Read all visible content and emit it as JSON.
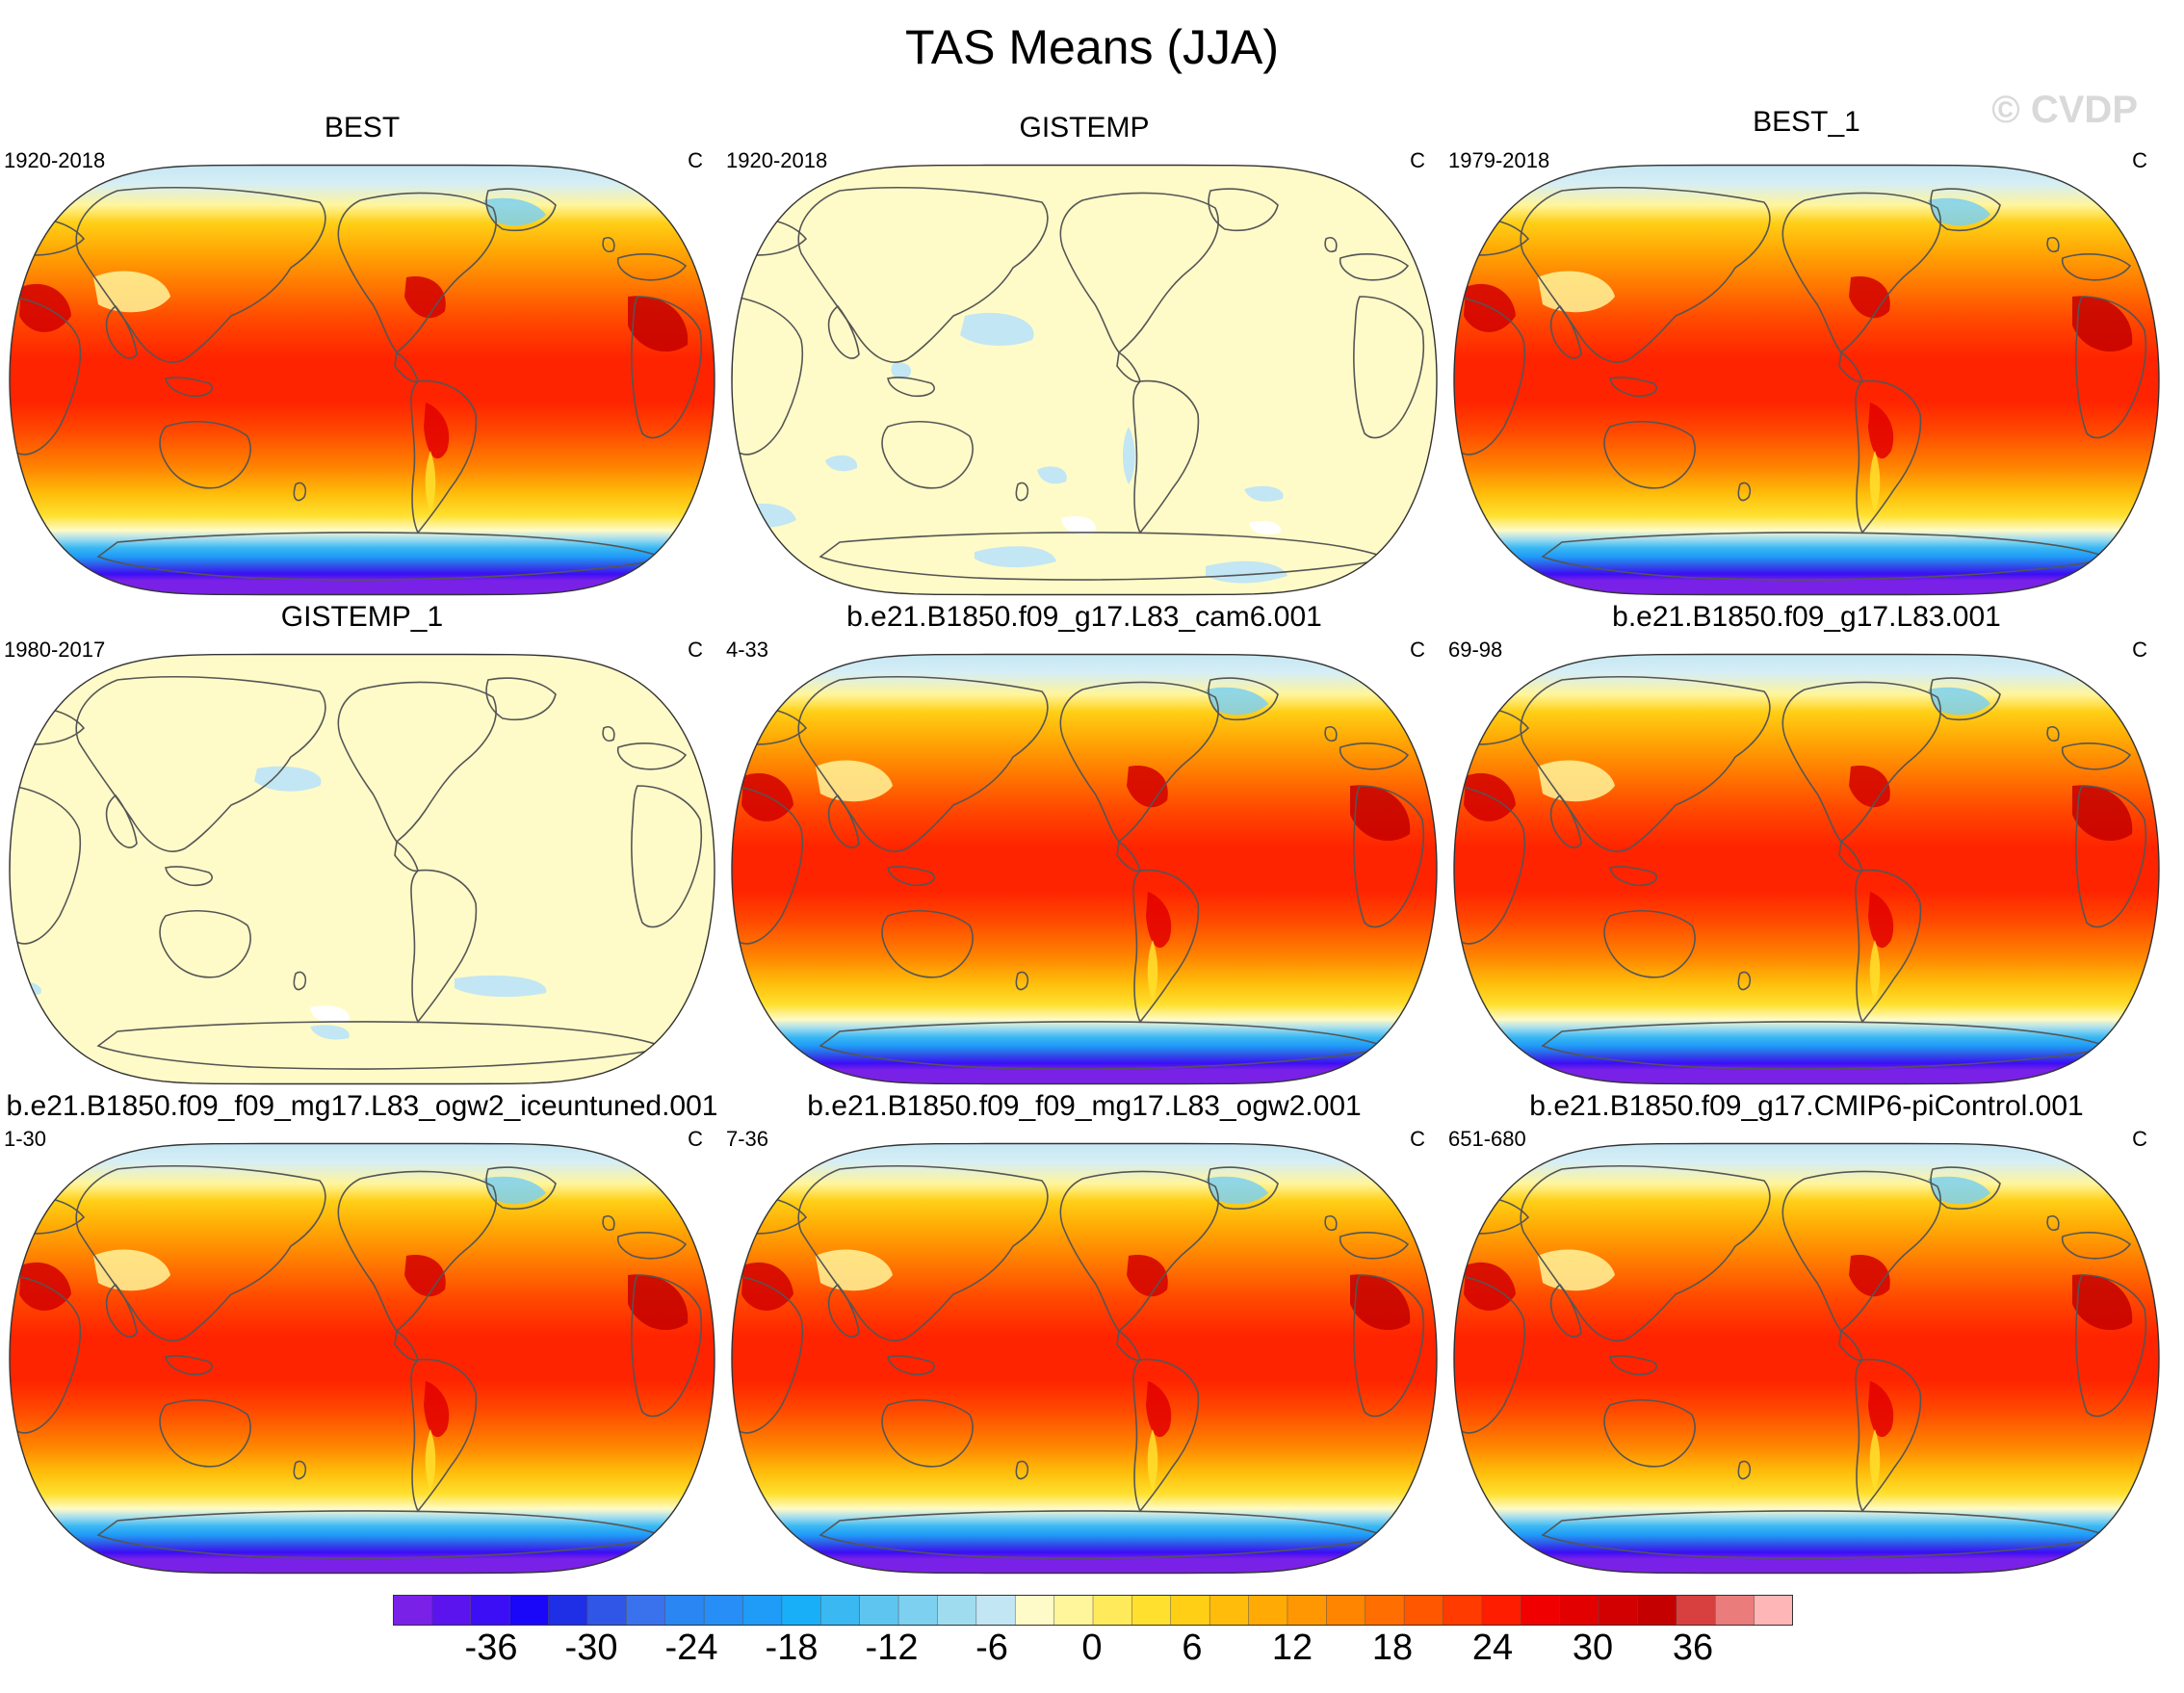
{
  "title": "TAS Means (JJA)",
  "watermark": "© CVDP",
  "chart_data": {
    "type": "heatmap",
    "title": "TAS Means (JJA)",
    "units": "C",
    "projection": "Robinson world map centred on the Pacific",
    "colorbar": {
      "tick_labels": [
        "-36",
        "-30",
        "-24",
        "-18",
        "-12",
        "-6",
        "0",
        "6",
        "12",
        "18",
        "24",
        "30",
        "36"
      ],
      "colors": [
        "#7a21e8",
        "#5c14ef",
        "#3b0ef5",
        "#1a06f8",
        "#1f2fe6",
        "#2f56e6",
        "#3a72ee",
        "#2a86f2",
        "#268ef6",
        "#1f9bf8",
        "#18aef8",
        "#3ab8f2",
        "#5ec5f0",
        "#7dd0f0",
        "#a0dcf0",
        "#c2e6f3",
        "#fffbc8",
        "#fff59a",
        "#ffea5c",
        "#ffe02e",
        "#ffcf16",
        "#ffbc0a",
        "#ffaa05",
        "#ff9702",
        "#ff8400",
        "#ff6e00",
        "#ff5600",
        "#ff3b00",
        "#ff1d00",
        "#f00000",
        "#e20000",
        "#d20000",
        "#c40000",
        "#d84040",
        "#ea7c7c",
        "#ffb6b6"
      ]
    },
    "panels": [
      {
        "title": "BEST",
        "period": "1920-2018",
        "units": "C",
        "style": "full"
      },
      {
        "title": "GISTEMP",
        "period": "1920-2018",
        "units": "C",
        "style": "anomaly"
      },
      {
        "title": "BEST_1",
        "period": "1979-2018",
        "units": "C",
        "style": "full"
      },
      {
        "title": "GISTEMP_1",
        "period": "1980-2017",
        "units": "C",
        "style": "anomaly"
      },
      {
        "title": "b.e21.B1850.f09_g17.L83_cam6.001",
        "period": "4-33",
        "units": "C",
        "style": "full"
      },
      {
        "title": "b.e21.B1850.f09_g17.L83.001",
        "period": "69-98",
        "units": "C",
        "style": "full"
      },
      {
        "title": "b.e21.B1850.f09_f09_mg17.L83_ogw2_iceuntuned.001",
        "period": "1-30",
        "units": "C",
        "style": "full"
      },
      {
        "title": "b.e21.B1850.f09_f09_mg17.L83_ogw2.001",
        "period": "7-36",
        "units": "C",
        "style": "full"
      },
      {
        "title": "b.e21.B1850.f09_g17.CMIP6-piControl.001",
        "period": "651-680",
        "units": "C",
        "style": "full"
      }
    ]
  }
}
